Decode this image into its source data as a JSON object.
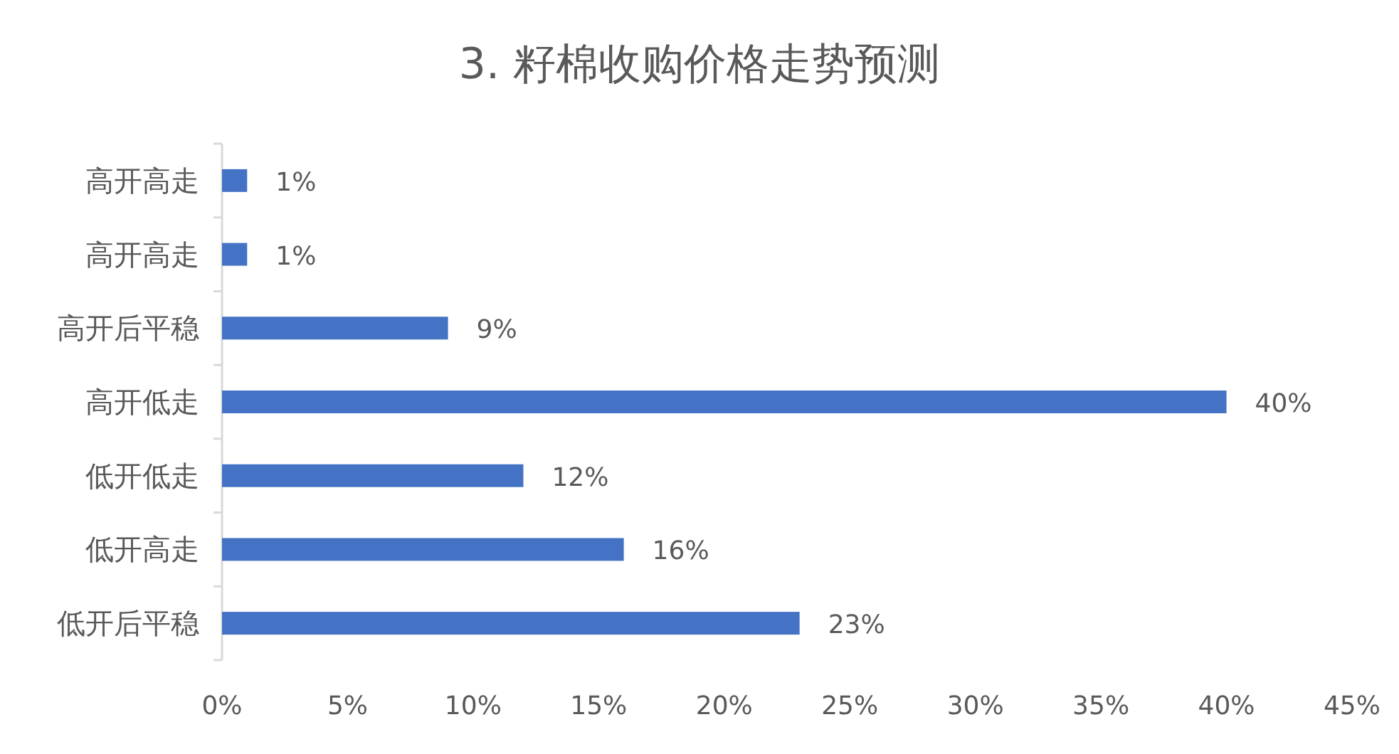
{
  "chart_data": {
    "type": "bar",
    "orientation": "horizontal",
    "title": "3. 籽棉收购价格走势预测",
    "categories": [
      "高开高走",
      "高开高走",
      "高开后平稳",
      "高开低走",
      "低开低走",
      "低开高走",
      "低开后平稳"
    ],
    "values": [
      1,
      1,
      9,
      40,
      12,
      16,
      23
    ],
    "value_labels": [
      "1%",
      "1%",
      "9%",
      "40%",
      "12%",
      "16%",
      "23%"
    ],
    "color": "#4472c4",
    "xlim": [
      0,
      45
    ],
    "xticks": [
      {
        "value": 0,
        "label": "0%"
      },
      {
        "value": 5,
        "label": "5%"
      },
      {
        "value": 10,
        "label": "10%"
      },
      {
        "value": 15,
        "label": "15%"
      },
      {
        "value": 20,
        "label": "20%"
      },
      {
        "value": 25,
        "label": "25%"
      },
      {
        "value": 30,
        "label": "30%"
      },
      {
        "value": 35,
        "label": "35%"
      },
      {
        "value": 40,
        "label": "40%"
      },
      {
        "value": 45,
        "label": "45%"
      }
    ]
  }
}
